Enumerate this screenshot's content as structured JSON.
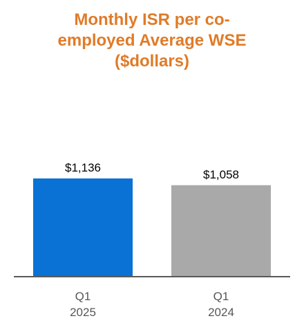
{
  "chart_data": {
    "type": "bar",
    "title_lines": [
      "Monthly ISR per co-",
      "employed Average WSE",
      "($dollars)"
    ],
    "categories": [
      [
        "Q1",
        "2025"
      ],
      [
        "Q1",
        "2024"
      ]
    ],
    "values": [
      1136,
      1058
    ],
    "data_labels": [
      "$1,136",
      "$1,058"
    ],
    "colors": [
      "#0a72d4",
      "#a9a9a9"
    ],
    "title_color": "#e07b28",
    "axis_color": "#595959",
    "grid": false,
    "legend": "none"
  }
}
